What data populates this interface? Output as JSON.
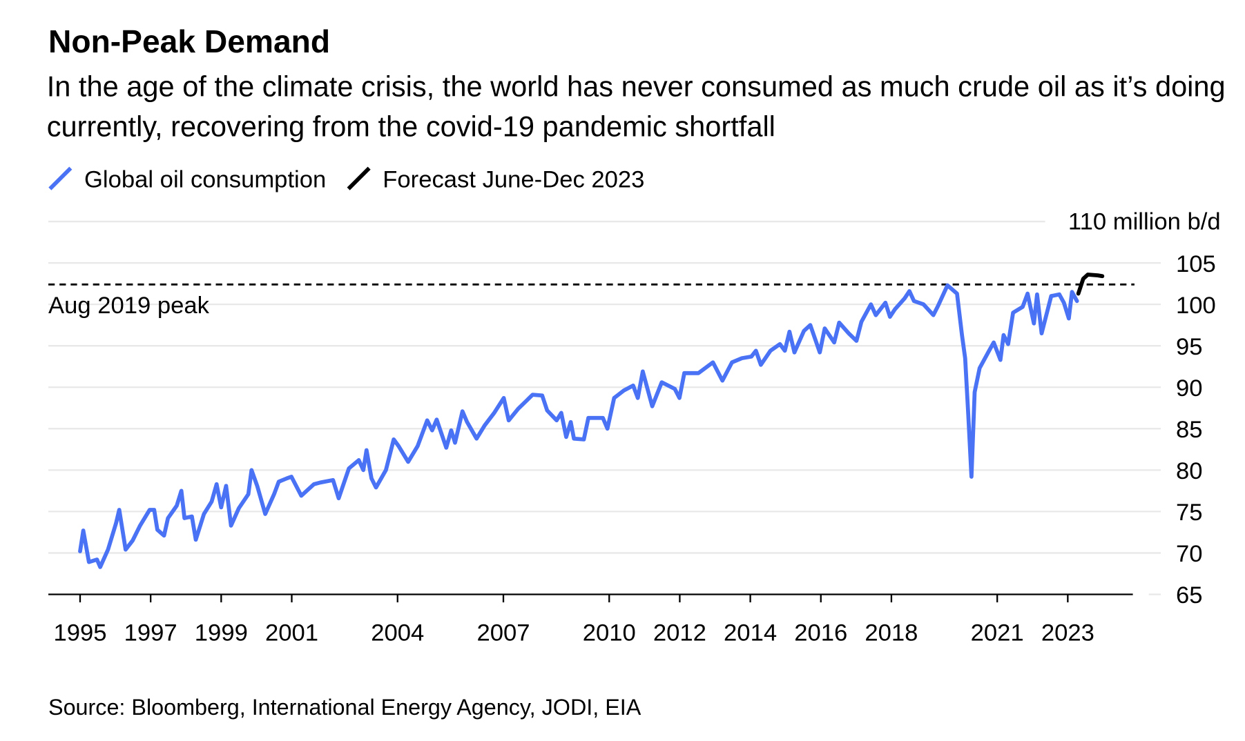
{
  "chart_data": {
    "type": "line",
    "title": "Non-Peak Demand",
    "subtitle": "In the age of the climate crisis, the world has never consumed as much crude oil as it’s doing currently, recovering from the covid-19 pandemic shortfall",
    "source": "Source: Bloomberg, International Energy Agency, JODI, EIA",
    "reference_line": {
      "value": 102.4,
      "label": "Aug 2019 peak"
    },
    "xlim": [
      1994.1,
      2024.8
    ],
    "xticks": [
      1995,
      1997,
      1999,
      2001,
      2004,
      2007,
      2010,
      2012,
      2014,
      2016,
      2018,
      2021,
      2023
    ],
    "ylim": [
      65,
      110
    ],
    "yticks": [
      65,
      70,
      75,
      80,
      85,
      90,
      95,
      100,
      105,
      {
        "value": 110,
        "label": "110 million b/d"
      }
    ],
    "grid": true,
    "series": [
      {
        "name": "Global oil consumption",
        "color": "#4a72f5",
        "x": [
          1995.0,
          1995.09,
          1995.25,
          1995.48,
          1995.57,
          1995.79,
          1996.02,
          1996.11,
          1996.29,
          1996.49,
          1996.7,
          1996.97,
          1997.1,
          1997.19,
          1997.38,
          1997.49,
          1997.74,
          1997.87,
          1997.96,
          1998.17,
          1998.28,
          1998.51,
          1998.73,
          1998.87,
          1999.0,
          1999.14,
          1999.28,
          1999.5,
          1999.77,
          1999.86,
          2000.02,
          2000.25,
          2000.5,
          2000.63,
          2000.86,
          2000.99,
          2001.27,
          2001.63,
          2001.81,
          2002.17,
          2002.33,
          2002.62,
          2002.9,
          2003.03,
          2003.12,
          2003.26,
          2003.39,
          2003.67,
          2003.89,
          2004.03,
          2004.3,
          2004.57,
          2004.84,
          2004.98,
          2005.11,
          2005.38,
          2005.52,
          2005.63,
          2005.84,
          2005.97,
          2006.24,
          2006.47,
          2006.74,
          2007.01,
          2007.15,
          2007.42,
          2007.83,
          2008.1,
          2008.24,
          2008.51,
          2008.64,
          2008.78,
          2008.91,
          2009.0,
          2009.28,
          2009.41,
          2009.82,
          2009.95,
          2010.14,
          2010.41,
          2010.68,
          2010.81,
          2010.95,
          2011.22,
          2011.49,
          2011.86,
          2011.99,
          2012.13,
          2012.53,
          2012.94,
          2013.21,
          2013.48,
          2013.76,
          2014.03,
          2014.16,
          2014.3,
          2014.57,
          2014.84,
          2014.98,
          2015.11,
          2015.25,
          2015.52,
          2015.7,
          2015.97,
          2016.11,
          2016.38,
          2016.52,
          2016.79,
          2017.01,
          2017.15,
          2017.42,
          2017.56,
          2017.83,
          2017.96,
          2018.1,
          2018.37,
          2018.51,
          2018.64,
          2018.91,
          2019.19,
          2019.32,
          2019.59,
          2019.86,
          2020.0,
          2020.09,
          2020.18,
          2020.27,
          2020.36,
          2020.5,
          2020.77,
          2020.9,
          2021.09,
          2021.18,
          2021.31,
          2021.45,
          2021.72,
          2021.86,
          2022.04,
          2022.13,
          2022.26,
          2022.53,
          2022.76,
          2022.89,
          2023.03,
          2023.12,
          2023.26
        ],
        "values": [
          70.2,
          72.7,
          68.9,
          69.2,
          68.3,
          70.4,
          73.6,
          75.2,
          70.4,
          71.5,
          73.3,
          75.2,
          75.2,
          72.8,
          72.1,
          74.2,
          75.7,
          77.5,
          74.2,
          74.4,
          71.6,
          74.7,
          76.2,
          78.3,
          75.5,
          78.1,
          73.3,
          75.4,
          77.1,
          80.0,
          78.1,
          74.7,
          77.1,
          78.6,
          79.0,
          79.2,
          76.9,
          78.3,
          78.5,
          78.8,
          76.6,
          80.2,
          81.2,
          80.0,
          82.4,
          79.0,
          77.9,
          80.0,
          83.7,
          82.9,
          81.0,
          82.9,
          86.0,
          84.8,
          86.1,
          82.7,
          84.8,
          83.3,
          87.1,
          85.8,
          83.8,
          85.4,
          86.9,
          88.7,
          86.0,
          87.4,
          89.1,
          89.0,
          87.2,
          86.0,
          86.9,
          84.0,
          85.8,
          83.8,
          83.7,
          86.3,
          86.3,
          85.0,
          88.7,
          89.6,
          90.2,
          88.7,
          91.9,
          87.7,
          90.6,
          89.8,
          88.7,
          91.7,
          91.7,
          93.0,
          90.8,
          93.0,
          93.5,
          93.7,
          94.4,
          92.7,
          94.4,
          95.2,
          94.4,
          96.7,
          94.2,
          96.8,
          97.5,
          94.2,
          97.1,
          95.4,
          97.8,
          96.5,
          95.6,
          97.9,
          100.0,
          98.7,
          100.2,
          98.5,
          99.4,
          100.7,
          101.6,
          100.4,
          100.0,
          98.7,
          99.8,
          102.3,
          101.3,
          96.3,
          93.5,
          86.7,
          79.2,
          89.4,
          92.3,
          94.4,
          95.4,
          93.3,
          96.3,
          95.2,
          99.0,
          99.7,
          101.3,
          97.7,
          101.2,
          96.5,
          101.0,
          101.2,
          100.2,
          98.3,
          101.5,
          100.4
        ]
      },
      {
        "name": "Forecast June-Dec 2023",
        "color": "#000000",
        "x": [
          2023.3,
          2023.44,
          2023.57,
          2023.85,
          2023.98
        ],
        "values": [
          101.3,
          103.1,
          103.6,
          103.5,
          103.4
        ]
      }
    ]
  }
}
